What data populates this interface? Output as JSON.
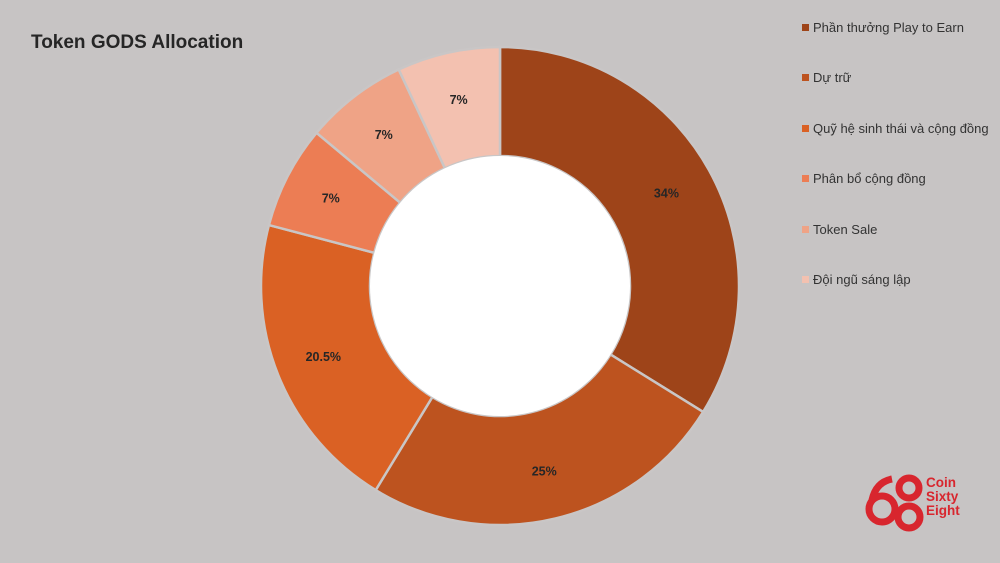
{
  "chart_data": {
    "type": "pie",
    "title": "Token GODS Allocation",
    "categories": [
      "Phần thưởng Play to Earn",
      "Dự trữ",
      "Quỹ hệ sinh thái và cộng đồng",
      "Phân bổ cộng đồng",
      "Token Sale",
      "Đội ngũ sáng lập"
    ],
    "values": [
      34,
      25,
      20.5,
      7,
      7,
      7
    ],
    "data_labels": [
      "34%",
      "25%",
      "20.5%",
      "7%",
      "7%",
      "7%"
    ],
    "colors": [
      "#9e4419",
      "#bd531f",
      "#da6124",
      "#ec7d54",
      "#efa386",
      "#f3c1b0"
    ],
    "donut": true,
    "legend": "right"
  },
  "logo": {
    "mark": "68",
    "lines": [
      "Coin",
      "Sixty",
      "Eight"
    ],
    "color": "#d8262e"
  }
}
